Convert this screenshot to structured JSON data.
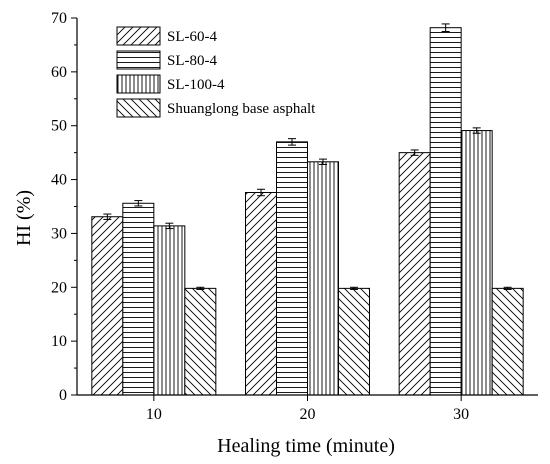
{
  "chart_data": {
    "type": "bar",
    "categories": [
      "10",
      "20",
      "30"
    ],
    "series": [
      {
        "name": "SL-60-4",
        "pattern": "diagonal-forward",
        "values": [
          33.1,
          37.6,
          45.0
        ],
        "errors": [
          0.5,
          0.6,
          0.5
        ]
      },
      {
        "name": "SL-80-4",
        "pattern": "horizontal",
        "values": [
          35.6,
          47.0,
          68.2
        ],
        "errors": [
          0.5,
          0.6,
          0.7
        ]
      },
      {
        "name": "SL-100-4",
        "pattern": "vertical",
        "values": [
          31.4,
          43.3,
          49.1
        ],
        "errors": [
          0.5,
          0.5,
          0.5
        ]
      },
      {
        "name": "Shuanglong base asphalt",
        "pattern": "diagonal-backward",
        "values": [
          19.8,
          19.8,
          19.8
        ],
        "errors": [
          0.2,
          0.2,
          0.2
        ]
      }
    ],
    "xlabel": "Healing time (minute)",
    "ylabel": "HI (%)",
    "ylim": [
      0,
      70
    ],
    "yticks": [
      0,
      10,
      20,
      30,
      40,
      50,
      60,
      70
    ],
    "grid": false,
    "legend_position": "top-left"
  }
}
